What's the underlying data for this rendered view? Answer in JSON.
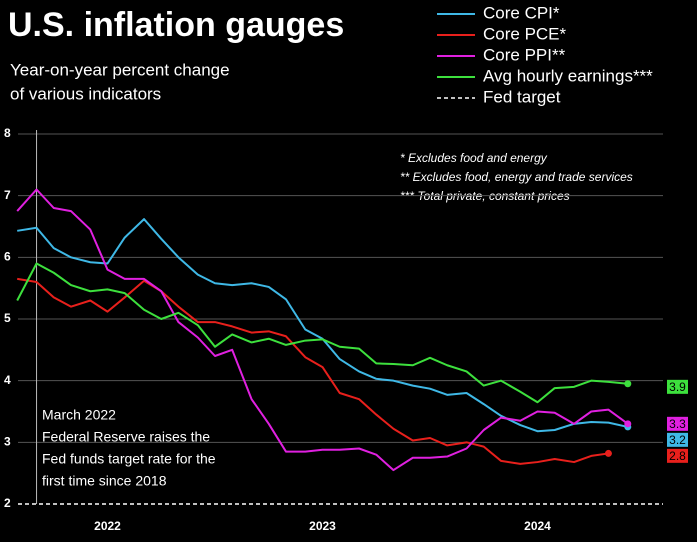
{
  "chart_data": {
    "type": "line",
    "title": "U.S. inflation gauges",
    "subtitle": [
      "Year-on-year percent change",
      "of various indicators"
    ],
    "notes": [
      "* Excludes food and energy",
      "** Excludes food, energy and trade services",
      "*** Total private, constant prices"
    ],
    "annotation": {
      "x": 2022.17,
      "text": [
        "March 2022",
        "Federal Reserve raises the",
        "Fed funds target rate for the",
        "first time since 2018"
      ]
    },
    "x": [
      2022.08,
      2022.17,
      2022.25,
      2022.33,
      2022.42,
      2022.5,
      2022.58,
      2022.67,
      2022.75,
      2022.83,
      2022.92,
      2023.0,
      2023.08,
      2023.17,
      2023.25,
      2023.33,
      2023.42,
      2023.5,
      2023.58,
      2023.67,
      2023.75,
      2023.83,
      2023.92,
      2024.0,
      2024.08,
      2024.17,
      2024.25,
      2024.33,
      2024.42,
      2024.5,
      2024.58,
      2024.67,
      2024.75,
      2024.83,
      2024.92
    ],
    "xlim": [
      2022,
      2025.2
    ],
    "xticks": [
      {
        "value": 2022.5,
        "label": "2022"
      },
      {
        "value": 2023.5,
        "label": "2023"
      },
      {
        "value": 2024.5,
        "label": "2024"
      }
    ],
    "ylim": [
      2,
      8
    ],
    "yticks": [
      2,
      3,
      4,
      5,
      6,
      7,
      8
    ],
    "grid": true,
    "legend": "top-right",
    "reference_line": {
      "name": "Fed target",
      "value": 2,
      "color": "#ffffff"
    },
    "series": [
      {
        "name": "Core CPI*",
        "color": "#3fb8e6",
        "end_value": 3.2,
        "values": [
          6.43,
          6.48,
          6.15,
          6.0,
          5.92,
          5.9,
          6.32,
          6.62,
          6.3,
          6.0,
          5.72,
          5.58,
          5.55,
          5.58,
          5.52,
          5.32,
          4.83,
          4.68,
          4.35,
          4.15,
          4.03,
          4.0,
          3.92,
          3.87,
          3.77,
          3.8,
          3.62,
          3.43,
          3.28,
          3.18,
          3.2,
          3.3,
          3.33,
          3.32,
          3.25
        ]
      },
      {
        "name": "Core PCE*",
        "color": "#e8201c",
        "end_value": 2.8,
        "values": [
          5.65,
          5.6,
          5.35,
          5.2,
          5.3,
          5.12,
          5.35,
          5.62,
          5.45,
          5.2,
          4.95,
          4.95,
          4.88,
          4.78,
          4.8,
          4.72,
          4.38,
          4.22,
          3.8,
          3.7,
          3.45,
          3.22,
          3.03,
          3.07,
          2.95,
          3.0,
          2.93,
          2.7,
          2.65,
          2.68,
          2.73,
          2.68,
          2.78,
          2.82,
          null
        ]
      },
      {
        "name": "Core PPI**",
        "color": "#e020e0",
        "end_value": 3.3,
        "values": [
          6.75,
          7.1,
          6.8,
          6.75,
          6.45,
          5.8,
          5.65,
          5.65,
          5.45,
          4.95,
          4.7,
          4.4,
          4.5,
          3.7,
          3.3,
          2.85,
          2.85,
          2.88,
          2.88,
          2.9,
          2.8,
          2.55,
          2.75,
          2.75,
          2.77,
          2.9,
          3.2,
          3.4,
          3.35,
          3.5,
          3.48,
          3.3,
          3.5,
          3.53,
          3.3
        ]
      },
      {
        "name": "Avg hourly earnings***",
        "color": "#3de03d",
        "end_value": 3.9,
        "values": [
          5.3,
          5.9,
          5.75,
          5.55,
          5.45,
          5.48,
          5.42,
          5.15,
          5.0,
          5.1,
          4.9,
          4.55,
          4.75,
          4.62,
          4.68,
          4.58,
          4.65,
          4.67,
          4.55,
          4.52,
          4.28,
          4.27,
          4.25,
          4.37,
          4.25,
          4.15,
          3.92,
          4.0,
          3.82,
          3.65,
          3.88,
          3.9,
          4.0,
          3.98,
          3.95
        ]
      }
    ]
  }
}
